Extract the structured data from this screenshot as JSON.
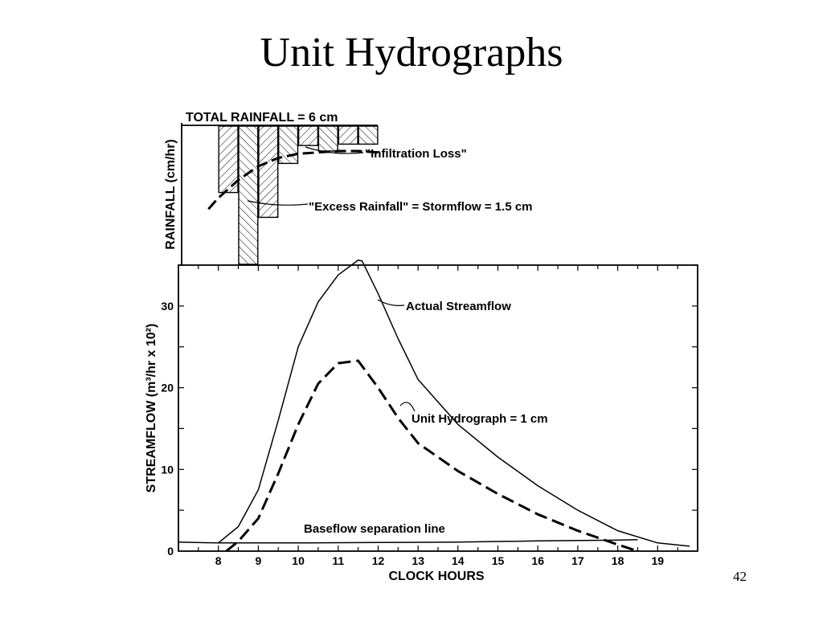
{
  "slide": {
    "title": "Unit Hydrographs",
    "page_number": "42"
  },
  "chart_data": [
    {
      "type": "bar",
      "panel": "rainfall hyetograph",
      "title": "TOTAL RAINFALL = 6 cm",
      "ylabel": "RAINFALL (cm/hr)",
      "x_hours": [
        8.0,
        8.5,
        9.0,
        9.5,
        10.0,
        10.5,
        11.0,
        11.5
      ],
      "bar_width_hours": 0.5,
      "rainfall_depth_relative": [
        0.48,
        1.0,
        0.66,
        0.27,
        0.14,
        0.18,
        0.13,
        0.13
      ],
      "infiltration_curve_relative": {
        "x": [
          7.75,
          8.0,
          8.5,
          9.0,
          9.5,
          10.0,
          10.5,
          11.0,
          11.5,
          12.0
        ],
        "y": [
          0.6,
          0.52,
          0.39,
          0.29,
          0.23,
          0.2,
          0.19,
          0.18,
          0.18,
          0.19
        ]
      },
      "annotations": [
        "\"Infiltration Loss\"",
        "\"Excess Rainfall\" = Stormflow = 1.5 cm"
      ]
    },
    {
      "type": "line",
      "panel": "streamflow hydrograph",
      "xlabel": "CLOCK HOURS",
      "ylabel": "STREAMFLOW (m³/hr x 10²)",
      "xticks": [
        8,
        9,
        10,
        11,
        12,
        13,
        14,
        15,
        16,
        17,
        18,
        19
      ],
      "yticks": [
        0,
        10,
        20,
        30
      ],
      "xlim": [
        7,
        20
      ],
      "ylim": [
        0,
        35
      ],
      "series": [
        {
          "name": "Actual Streamflow",
          "style": "solid",
          "x": [
            8.0,
            8.5,
            9.0,
            9.5,
            10.0,
            10.5,
            11.0,
            11.5,
            11.6,
            12.0,
            12.5,
            13.0,
            14.0,
            15.0,
            16.0,
            17.0,
            18.0,
            19.0,
            19.8
          ],
          "y": [
            1.0,
            3.0,
            7.5,
            16.0,
            25.0,
            30.5,
            33.8,
            35.6,
            35.5,
            31.5,
            26.0,
            21.0,
            15.5,
            11.5,
            8.0,
            5.0,
            2.5,
            1.0,
            0.6
          ]
        },
        {
          "name": "Unit Hydrograph = 1 cm",
          "style": "dashed",
          "x": [
            8.2,
            8.5,
            9.0,
            9.5,
            10.0,
            10.5,
            11.0,
            11.5,
            12.0,
            12.5,
            13.0,
            14.0,
            15.0,
            16.0,
            17.0,
            18.0,
            18.5
          ],
          "y": [
            0.0,
            1.2,
            4.0,
            9.5,
            15.5,
            20.5,
            23.0,
            23.3,
            20.0,
            16.3,
            13.2,
            9.8,
            7.0,
            4.5,
            2.5,
            0.8,
            0.0
          ]
        },
        {
          "name": "Baseflow separation line",
          "style": "solid",
          "x": [
            7.0,
            8.0,
            10.0,
            12.0,
            14.0,
            16.0,
            18.0,
            18.5
          ],
          "y": [
            1.1,
            1.0,
            1.0,
            1.05,
            1.1,
            1.25,
            1.35,
            1.4
          ]
        }
      ]
    }
  ]
}
